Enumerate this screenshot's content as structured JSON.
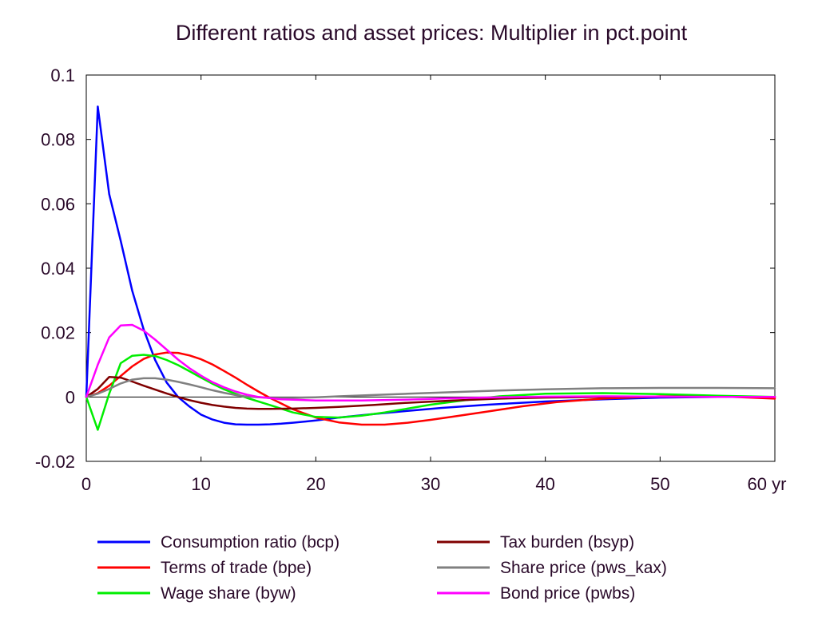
{
  "chart_data": {
    "type": "line",
    "title": "Different ratios and asset prices: Multiplier in pct.point",
    "xlabel": "",
    "ylabel": "",
    "x_unit": "yr",
    "xlim": [
      0,
      60
    ],
    "ylim": [
      -0.02,
      0.1
    ],
    "x_ticks": [
      0,
      10,
      20,
      30,
      40,
      50,
      60
    ],
    "x_tick_labels": [
      "0",
      "10",
      "20",
      "30",
      "40",
      "50",
      "60 yr"
    ],
    "y_ticks": [
      -0.02,
      0,
      0.02,
      0.04,
      0.06,
      0.08,
      0.1
    ],
    "y_tick_labels": [
      "-0.02",
      "0",
      "0.02",
      "0.04",
      "0.06",
      "0.08",
      "0.1"
    ],
    "grid": false,
    "zero_line": true,
    "legend_position": "bottom",
    "series": [
      {
        "name": "Consumption ratio (bcp)",
        "color": "#0000ff",
        "points": [
          [
            0,
            0
          ],
          [
            1,
            0.0902
          ],
          [
            2,
            0.063
          ],
          [
            3,
            0.0485
          ],
          [
            4,
            0.033
          ],
          [
            5,
            0.021
          ],
          [
            6,
            0.0115
          ],
          [
            7,
            0.0045
          ],
          [
            8,
            0
          ],
          [
            9,
            -0.003
          ],
          [
            10,
            -0.0055
          ],
          [
            11,
            -0.007
          ],
          [
            12,
            -0.008
          ],
          [
            13,
            -0.0085
          ],
          [
            14,
            -0.0086
          ],
          [
            15,
            -0.0086
          ],
          [
            16,
            -0.0085
          ],
          [
            17,
            -0.0083
          ],
          [
            18,
            -0.008
          ],
          [
            20,
            -0.0073
          ],
          [
            22,
            -0.0064
          ],
          [
            25,
            -0.0053
          ],
          [
            28,
            -0.0043
          ],
          [
            31,
            -0.0034
          ],
          [
            35,
            -0.0024
          ],
          [
            40,
            -0.0014
          ],
          [
            45,
            -0.0007
          ],
          [
            50,
            -0.0002
          ],
          [
            55,
            0
          ],
          [
            60,
            0
          ]
        ]
      },
      {
        "name": "Terms of trade (bpe)",
        "color": "#ff0000",
        "points": [
          [
            0,
            0
          ],
          [
            1,
            0.0012
          ],
          [
            2,
            0.0035
          ],
          [
            3,
            0.0065
          ],
          [
            4,
            0.0095
          ],
          [
            5,
            0.0118
          ],
          [
            6,
            0.0132
          ],
          [
            7,
            0.0138
          ],
          [
            8,
            0.0137
          ],
          [
            9,
            0.0129
          ],
          [
            10,
            0.0117
          ],
          [
            11,
            0.0101
          ],
          [
            12,
            0.0081
          ],
          [
            13,
            0.006
          ],
          [
            14,
            0.0038
          ],
          [
            15,
            0.0017
          ],
          [
            16,
            -0.0003
          ],
          [
            18,
            -0.0038
          ],
          [
            20,
            -0.0064
          ],
          [
            22,
            -0.0079
          ],
          [
            24,
            -0.0086
          ],
          [
            26,
            -0.0086
          ],
          [
            28,
            -0.008
          ],
          [
            30,
            -0.0071
          ],
          [
            32,
            -0.0061
          ],
          [
            35,
            -0.0045
          ],
          [
            38,
            -0.0029
          ],
          [
            41,
            -0.0016
          ],
          [
            45,
            -0.0005
          ],
          [
            50,
            0.0002
          ],
          [
            55,
            0.0002
          ],
          [
            60,
            -0.0005
          ]
        ]
      },
      {
        "name": "Wage share (byw)",
        "color": "#00ee00",
        "points": [
          [
            0,
            0
          ],
          [
            1,
            -0.0102
          ],
          [
            2,
            0.001
          ],
          [
            3,
            0.0105
          ],
          [
            4,
            0.0128
          ],
          [
            5,
            0.0131
          ],
          [
            6,
            0.0127
          ],
          [
            7,
            0.0115
          ],
          [
            8,
            0.0099
          ],
          [
            9,
            0.008
          ],
          [
            10,
            0.006
          ],
          [
            11,
            0.0041
          ],
          [
            12,
            0.0024
          ],
          [
            13,
            0.001
          ],
          [
            14,
            -0.0003
          ],
          [
            16,
            -0.0025
          ],
          [
            18,
            -0.0048
          ],
          [
            20,
            -0.0062
          ],
          [
            22,
            -0.0064
          ],
          [
            24,
            -0.0058
          ],
          [
            26,
            -0.0048
          ],
          [
            28,
            -0.0036
          ],
          [
            30,
            -0.0024
          ],
          [
            33,
            -0.001
          ],
          [
            36,
            0.0002
          ],
          [
            40,
            0.001
          ],
          [
            45,
            0.0012
          ],
          [
            50,
            0.0009
          ],
          [
            55,
            0.0004
          ],
          [
            60,
            0
          ]
        ]
      },
      {
        "name": "Tax burden (bsyp)",
        "color": "#800000",
        "points": [
          [
            0,
            0
          ],
          [
            1,
            0.0025
          ],
          [
            2,
            0.0062
          ],
          [
            3,
            0.006
          ],
          [
            4,
            0.0048
          ],
          [
            5,
            0.0035
          ],
          [
            6,
            0.0023
          ],
          [
            7,
            0.0011
          ],
          [
            8,
            0
          ],
          [
            9,
            -0.001
          ],
          [
            10,
            -0.0018
          ],
          [
            11,
            -0.0025
          ],
          [
            12,
            -0.003
          ],
          [
            13,
            -0.0034
          ],
          [
            14,
            -0.0036
          ],
          [
            15,
            -0.0037
          ],
          [
            16,
            -0.0037
          ],
          [
            18,
            -0.0036
          ],
          [
            20,
            -0.0034
          ],
          [
            22,
            -0.0031
          ],
          [
            25,
            -0.0025
          ],
          [
            28,
            -0.0018
          ],
          [
            32,
            -0.0011
          ],
          [
            36,
            -0.0005
          ],
          [
            40,
            -0.0002
          ],
          [
            45,
            0
          ],
          [
            50,
            0.0001
          ],
          [
            55,
            0
          ],
          [
            60,
            0
          ]
        ]
      },
      {
        "name": "Share price (pws_kax)",
        "color": "#808080",
        "points": [
          [
            0,
            0
          ],
          [
            1,
            0.001
          ],
          [
            2,
            0.0025
          ],
          [
            3,
            0.0042
          ],
          [
            4,
            0.0054
          ],
          [
            5,
            0.0058
          ],
          [
            6,
            0.0058
          ],
          [
            7,
            0.0054
          ],
          [
            8,
            0.0047
          ],
          [
            9,
            0.0039
          ],
          [
            10,
            0.003
          ],
          [
            11,
            0.0021
          ],
          [
            12,
            0.0013
          ],
          [
            13,
            0.0006
          ],
          [
            14,
            0.0001
          ],
          [
            16,
            -0.0003
          ],
          [
            18,
            -0.0003
          ],
          [
            20,
            -0.0001
          ],
          [
            22,
            0.0002
          ],
          [
            25,
            0.0006
          ],
          [
            28,
            0.001
          ],
          [
            32,
            0.0015
          ],
          [
            36,
            0.002
          ],
          [
            40,
            0.0024
          ],
          [
            45,
            0.0027
          ],
          [
            50,
            0.0028
          ],
          [
            55,
            0.0028
          ],
          [
            60,
            0.0027
          ]
        ]
      },
      {
        "name": "Bond price (pwbs)",
        "color": "#ff00ff",
        "points": [
          [
            0,
            0
          ],
          [
            1,
            0.01
          ],
          [
            2,
            0.0185
          ],
          [
            3,
            0.0222
          ],
          [
            4,
            0.0224
          ],
          [
            5,
            0.0206
          ],
          [
            6,
            0.0178
          ],
          [
            7,
            0.0147
          ],
          [
            8,
            0.0116
          ],
          [
            9,
            0.0089
          ],
          [
            10,
            0.0066
          ],
          [
            11,
            0.0046
          ],
          [
            12,
            0.003
          ],
          [
            13,
            0.0017
          ],
          [
            14,
            0.0007
          ],
          [
            15,
            0
          ],
          [
            17,
            -0.0007
          ],
          [
            20,
            -0.0011
          ],
          [
            24,
            -0.0011
          ],
          [
            28,
            -0.0008
          ],
          [
            32,
            -0.0004
          ],
          [
            36,
            -0.0001
          ],
          [
            40,
            0.0001
          ],
          [
            45,
            0.0002
          ],
          [
            50,
            0.0001
          ],
          [
            55,
            0
          ],
          [
            60,
            0
          ]
        ]
      }
    ]
  }
}
